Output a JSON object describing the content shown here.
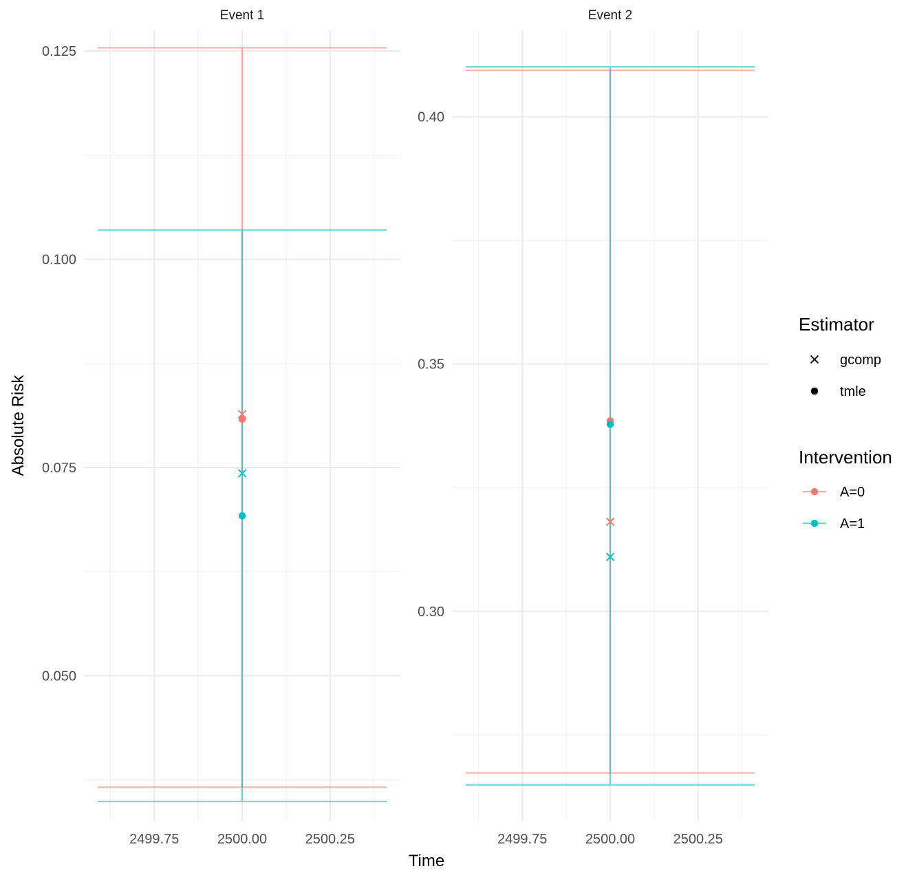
{
  "colors": {
    "A0": "#F8766D",
    "A1": "#00BFC4"
  },
  "chart_data": {
    "type": "scatter",
    "xlabel": "Time",
    "ylabel": "Absolute Risk",
    "panels": [
      {
        "title": "Event 1",
        "xlim": [
          2499.55,
          2500.45
        ],
        "ylim": [
          0.0325,
          0.1275
        ],
        "x_ticks": [
          "2499.75",
          "2500.00",
          "2500.25"
        ],
        "x_tick_values": [
          2499.75,
          2500.0,
          2500.25
        ],
        "y_ticks": [
          "0.050",
          "0.075",
          "0.100",
          "0.125"
        ],
        "y_tick_values": [
          0.05,
          0.075,
          0.1,
          0.125
        ],
        "points": [
          {
            "estimator": "gcomp",
            "intervention": "A=0",
            "x": 2500.0,
            "y": 0.0814
          },
          {
            "estimator": "tmle",
            "intervention": "A=0",
            "x": 2500.0,
            "y": 0.0808
          },
          {
            "estimator": "gcomp",
            "intervention": "A=1",
            "x": 2500.0,
            "y": 0.0743
          },
          {
            "estimator": "tmle",
            "intervention": "A=1",
            "x": 2500.0,
            "y": 0.0692
          }
        ],
        "intervals": [
          {
            "intervention": "A=0",
            "x": 2500.0,
            "low": 0.0366,
            "high": 0.1254
          },
          {
            "intervention": "A=1",
            "x": 2500.0,
            "low": 0.0349,
            "high": 0.1035
          }
        ]
      },
      {
        "title": "Event 2",
        "xlim": [
          2499.55,
          2500.45
        ],
        "ylim": [
          0.2575,
          0.4175
        ],
        "x_ticks": [
          "2499.75",
          "2500.00",
          "2500.25"
        ],
        "x_tick_values": [
          2499.75,
          2500.0,
          2500.25
        ],
        "y_ticks": [
          "0.30",
          "0.35",
          "0.40"
        ],
        "y_tick_values": [
          0.3,
          0.35,
          0.4
        ],
        "points": [
          {
            "estimator": "tmle",
            "intervention": "A=0",
            "x": 2500.0,
            "y": 0.3385
          },
          {
            "estimator": "tmle",
            "intervention": "A=1",
            "x": 2500.0,
            "y": 0.3378
          },
          {
            "estimator": "gcomp",
            "intervention": "A=0",
            "x": 2500.0,
            "y": 0.3181
          },
          {
            "estimator": "gcomp",
            "intervention": "A=1",
            "x": 2500.0,
            "y": 0.311
          }
        ],
        "intervals": [
          {
            "intervention": "A=0",
            "x": 2500.0,
            "low": 0.2673,
            "high": 0.4094
          },
          {
            "intervention": "A=1",
            "x": 2500.0,
            "low": 0.2649,
            "high": 0.4101
          }
        ]
      }
    ],
    "legends": [
      {
        "title": "Estimator",
        "entries": [
          {
            "label": "gcomp",
            "shape": "cross"
          },
          {
            "label": "tmle",
            "shape": "dot"
          }
        ]
      },
      {
        "title": "Intervention",
        "entries": [
          {
            "label": "A=0",
            "color": "#F8766D"
          },
          {
            "label": "A=1",
            "color": "#00BFC4"
          }
        ]
      }
    ],
    "legend_position": "right",
    "grid": true
  }
}
